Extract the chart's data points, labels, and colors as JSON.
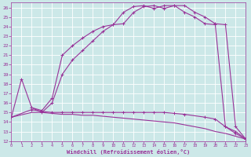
{
  "bg_color": "#cce8e8",
  "grid_color": "#aacccc",
  "line_color": "#993399",
  "xlim": [
    0,
    23
  ],
  "ylim": [
    12,
    26.5
  ],
  "xtick_vals": [
    0,
    1,
    2,
    3,
    4,
    5,
    6,
    7,
    8,
    9,
    10,
    11,
    12,
    13,
    14,
    15,
    16,
    17,
    18,
    19,
    20,
    21,
    22,
    23
  ],
  "ytick_vals": [
    12,
    13,
    14,
    15,
    16,
    17,
    18,
    19,
    20,
    21,
    22,
    23,
    24,
    25,
    26
  ],
  "xlabel": "Windchill (Refroidissement éolien,°C)",
  "curve1_x": [
    0,
    1,
    2,
    3,
    4,
    5,
    6,
    7,
    8,
    9,
    10,
    11,
    12,
    13,
    14,
    15,
    16,
    17,
    18,
    19,
    20,
    21,
    22,
    23
  ],
  "curve1_y": [
    14.5,
    18.5,
    15.5,
    15.0,
    16.0,
    19.0,
    20.5,
    21.5,
    22.5,
    23.5,
    24.2,
    25.5,
    26.1,
    26.2,
    25.9,
    26.2,
    26.2,
    25.5,
    25.0,
    24.3,
    24.2,
    13.5,
    13.0,
    12.2
  ],
  "curve2_x": [
    2,
    3,
    4,
    5,
    6,
    7,
    8,
    9,
    10,
    11,
    12,
    13,
    14,
    15,
    16,
    17,
    18,
    19,
    20,
    21,
    22,
    23
  ],
  "curve2_y": [
    15.5,
    15.2,
    16.5,
    21.0,
    22.0,
    22.8,
    23.5,
    24.0,
    24.2,
    24.3,
    25.5,
    26.1,
    26.2,
    25.9,
    26.2,
    26.2,
    25.5,
    25.0,
    24.3,
    24.2,
    13.5,
    12.2
  ],
  "curve3_x": [
    0,
    2,
    3,
    4,
    5,
    6,
    7,
    8,
    9,
    10,
    11,
    12,
    13,
    14,
    15,
    16,
    17,
    19,
    20,
    21,
    22,
    23
  ],
  "curve3_y": [
    14.5,
    15.3,
    15.1,
    15.0,
    15.0,
    15.0,
    15.0,
    15.0,
    15.0,
    15.0,
    15.0,
    15.0,
    15.0,
    15.0,
    15.0,
    14.9,
    14.8,
    14.5,
    14.3,
    13.5,
    12.8,
    12.2
  ],
  "curve4_x": [
    0,
    2,
    3,
    4,
    5,
    6,
    7,
    8,
    9,
    10,
    11,
    12,
    13,
    14,
    15,
    16,
    17,
    18,
    19,
    20,
    21,
    22,
    23
  ],
  "curve4_y": [
    14.5,
    15.0,
    15.0,
    14.9,
    14.8,
    14.8,
    14.7,
    14.7,
    14.6,
    14.5,
    14.4,
    14.3,
    14.2,
    14.1,
    14.0,
    13.9,
    13.7,
    13.5,
    13.3,
    13.0,
    12.8,
    12.5,
    12.2
  ]
}
